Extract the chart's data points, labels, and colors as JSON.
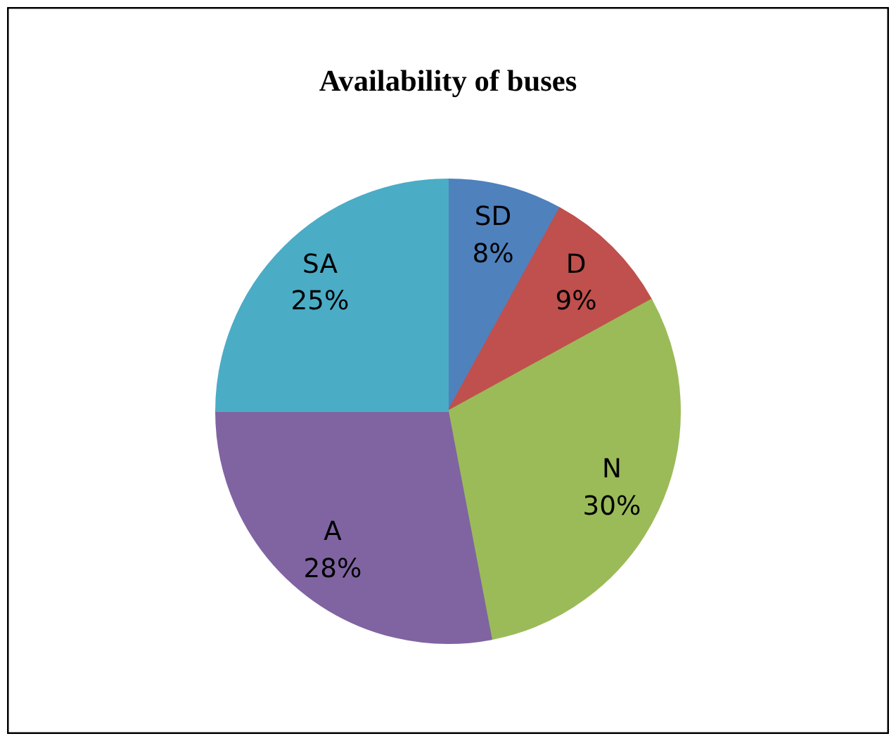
{
  "chart_data": {
    "type": "pie",
    "title": "Availability of buses",
    "categories": [
      "SD",
      "D",
      "N",
      "A",
      "SA"
    ],
    "values": [
      8,
      9,
      30,
      28,
      25
    ],
    "colors": [
      "#4f81bd",
      "#c0504d",
      "#9bbb59",
      "#8064a2",
      "#4bacc6"
    ],
    "value_labels": [
      "8%",
      "9%",
      "30%",
      "28%",
      "25%"
    ],
    "legend": false
  }
}
